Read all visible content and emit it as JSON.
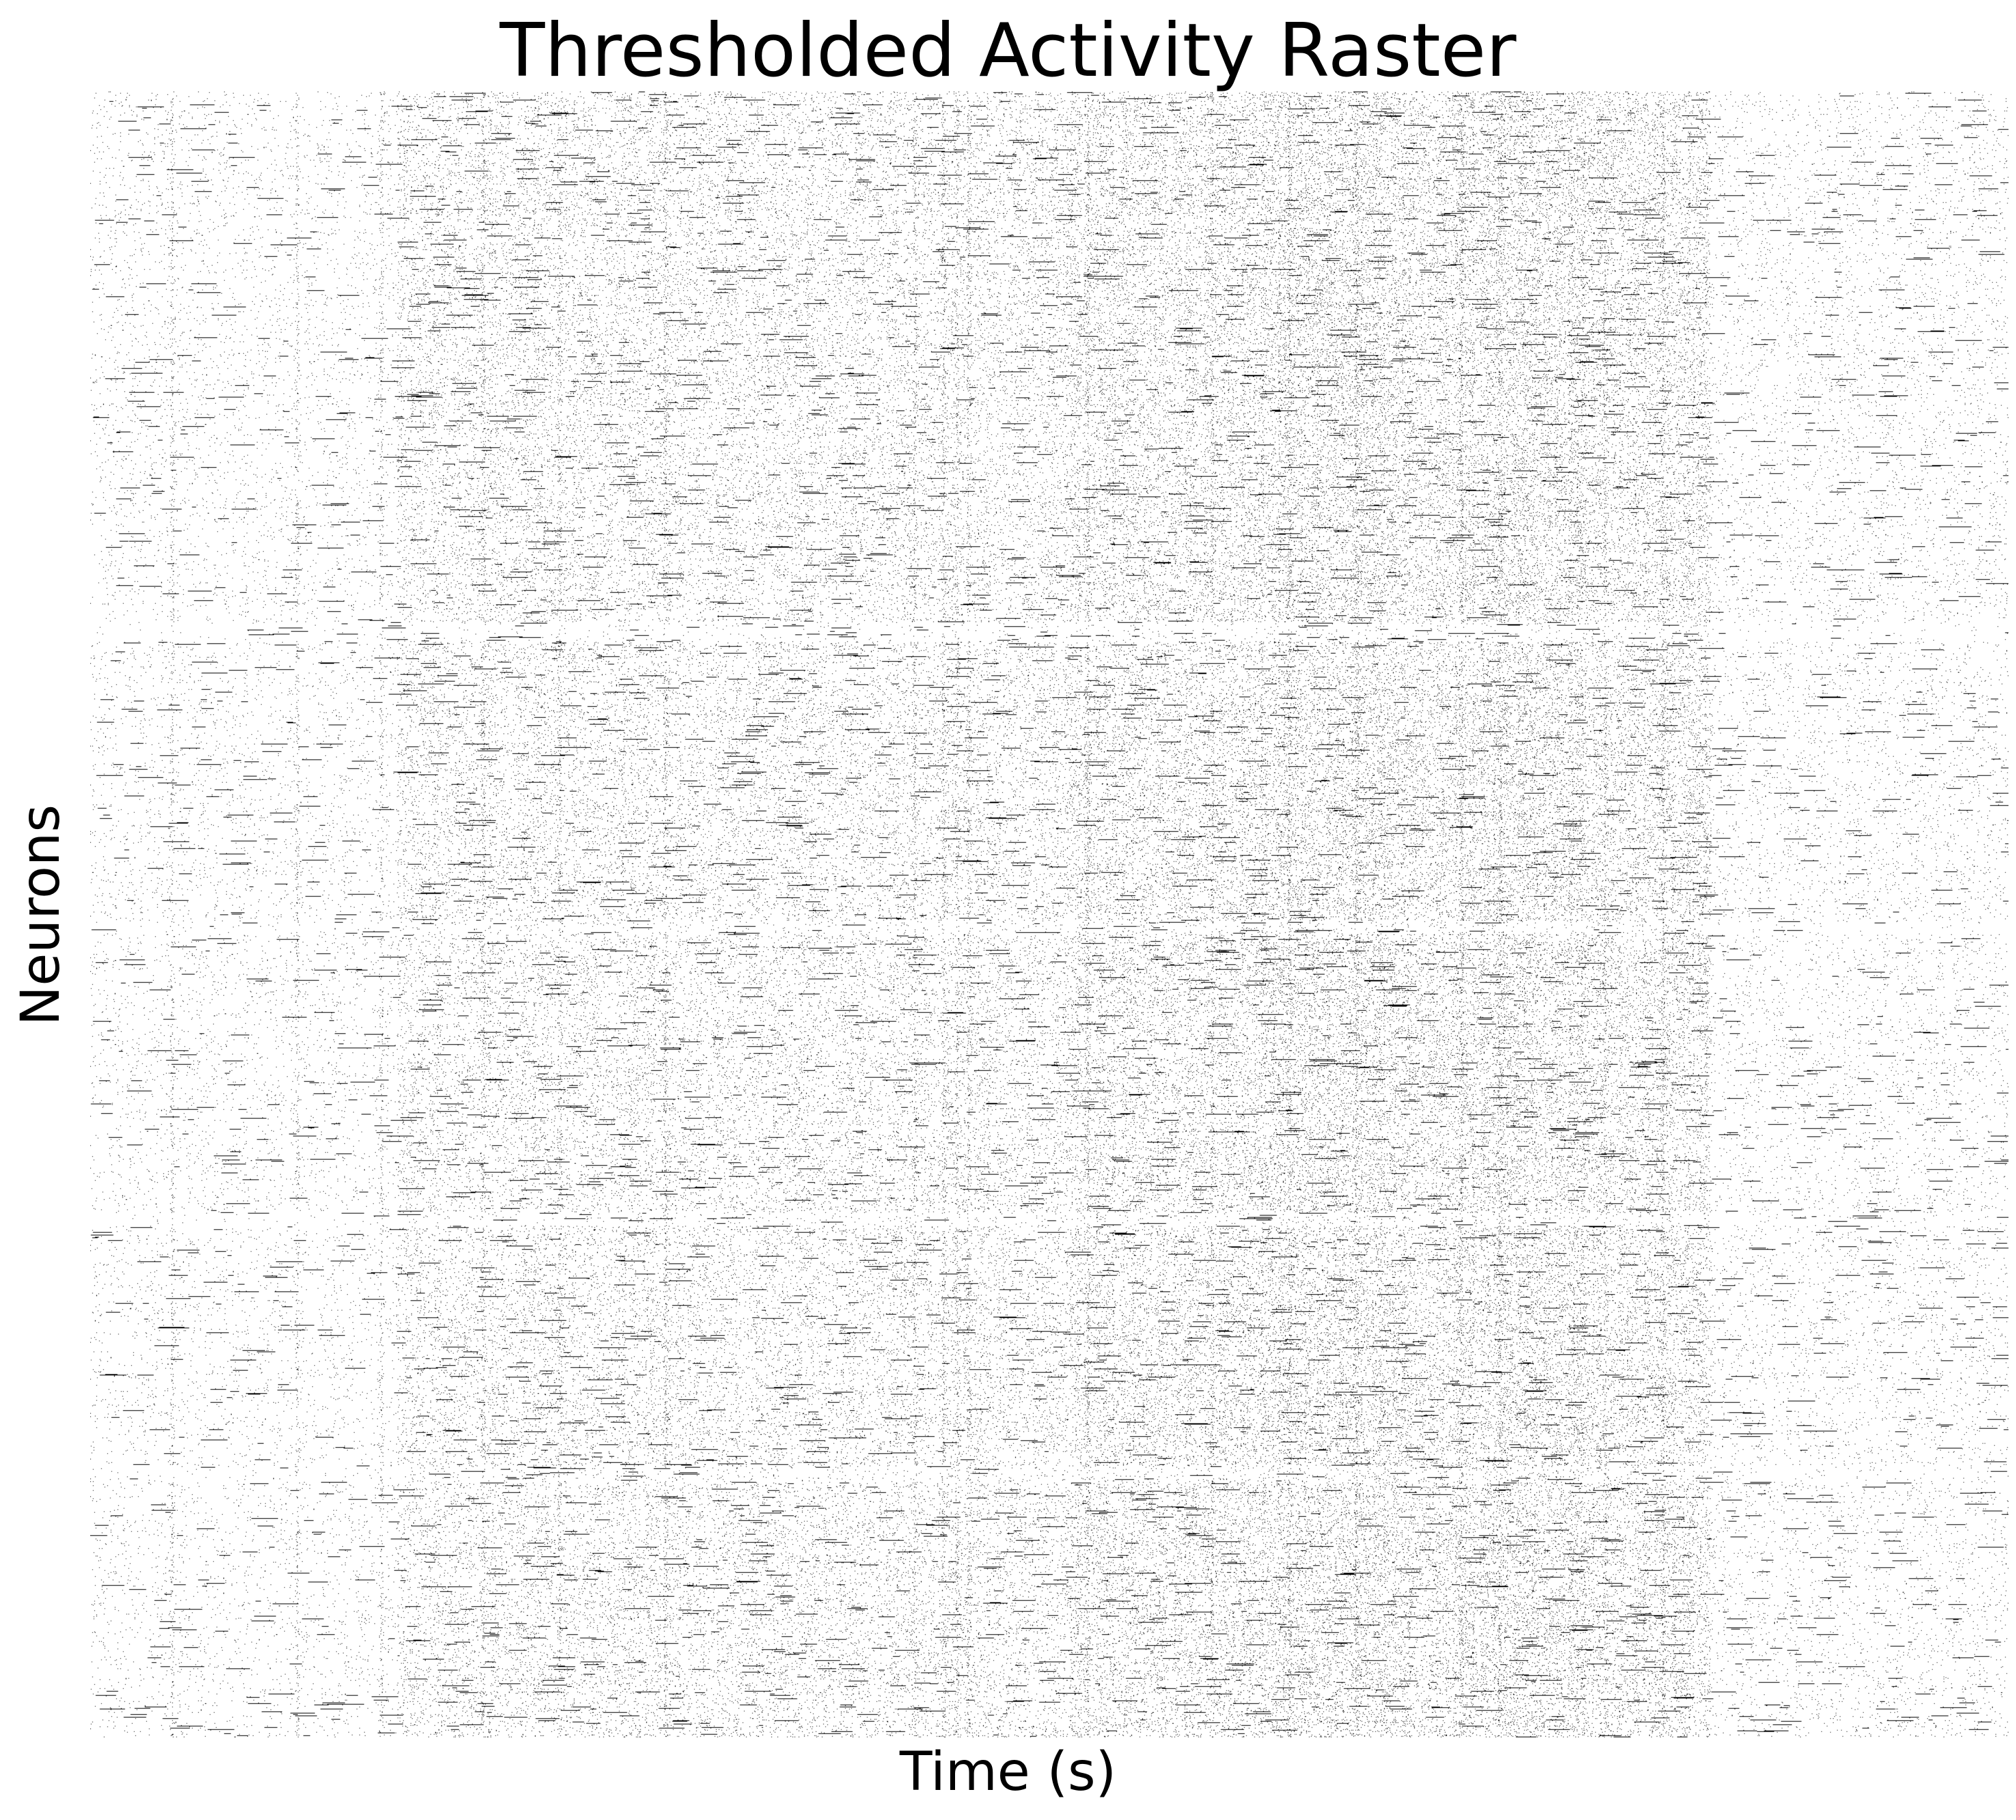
{
  "chart_data": {
    "type": "heatmap",
    "title": "Thresholded Activity Raster",
    "xlabel": "Time (s)",
    "ylabel": "Neurons",
    "xticks": [],
    "yticks": [],
    "grid": false,
    "legend": "none",
    "colormap": [
      "#ffffff",
      "#000000"
    ],
    "values": "binary"
  }
}
